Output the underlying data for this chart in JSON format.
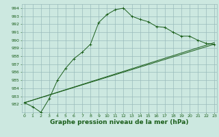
{
  "xlabel": "Graphe pression niveau de la mer (hPa)",
  "bg_color": "#cce8e0",
  "grid_color": "#99bbbb",
  "line_color": "#1a5e1a",
  "line1_x": [
    0,
    1,
    2,
    3,
    4,
    5,
    6,
    7,
    8,
    9,
    10,
    11,
    12,
    13,
    14,
    15,
    16,
    17,
    18,
    19,
    20,
    21,
    22,
    23
  ],
  "line1_y": [
    982.2,
    981.7,
    981.0,
    982.7,
    985.0,
    986.5,
    987.7,
    988.5,
    989.5,
    992.2,
    993.2,
    993.8,
    994.0,
    993.0,
    992.6,
    992.3,
    991.7,
    991.6,
    991.0,
    990.5,
    990.5,
    990.0,
    989.6,
    989.5
  ],
  "line2_x": [
    0,
    23
  ],
  "line2_y": [
    982.2,
    989.5
  ],
  "line3_x": [
    0,
    23
  ],
  "line3_y": [
    982.2,
    989.7
  ],
  "ylim": [
    981.0,
    994.5
  ],
  "xlim": [
    -0.3,
    23.3
  ],
  "yticks": [
    982,
    983,
    984,
    985,
    986,
    987,
    988,
    989,
    990,
    991,
    992,
    993,
    994
  ],
  "xticks": [
    0,
    1,
    2,
    3,
    4,
    5,
    6,
    7,
    8,
    9,
    10,
    11,
    12,
    13,
    14,
    15,
    16,
    17,
    18,
    19,
    20,
    21,
    22,
    23
  ],
  "tick_fontsize": 4.5,
  "xlabel_fontsize": 6.5
}
